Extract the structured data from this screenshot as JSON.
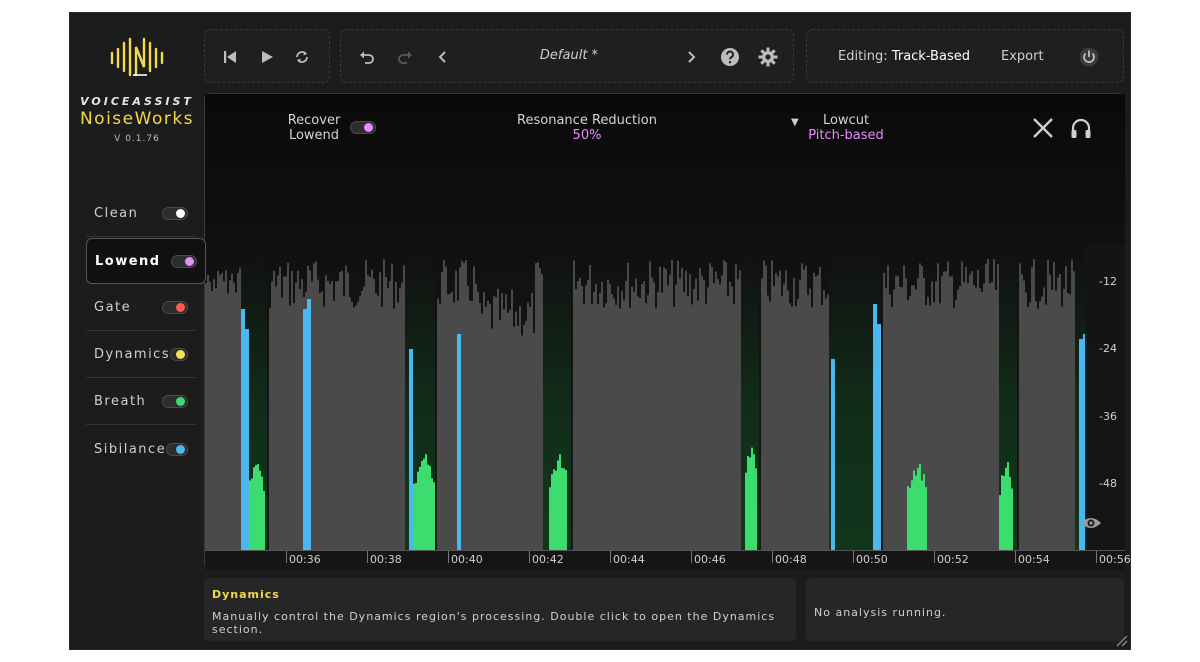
{
  "brand": {
    "top": "VOICEASSIST",
    "name": "NoiseWorks",
    "version": "V 0.1.76"
  },
  "sidebar": {
    "items": [
      {
        "label": "Clean",
        "color": "#ffffff",
        "active": false
      },
      {
        "label": "Lowend",
        "color": "#e68cff",
        "active": true
      },
      {
        "label": "Gate",
        "color": "#ff5a4e",
        "active": false
      },
      {
        "label": "Dynamics",
        "color": "#f2e25a",
        "active": false
      },
      {
        "label": "Breath",
        "color": "#3ddc6e",
        "active": false
      },
      {
        "label": "Sibilance",
        "color": "#4ab8ef",
        "active": false
      }
    ]
  },
  "toolbar": {
    "preset": "Default *",
    "editing_label": "Editing:",
    "editing_value": "Track-Based",
    "export_label": "Export",
    "icons": [
      "skip-back-icon",
      "play-icon",
      "loop-icon",
      "undo-icon",
      "redo-icon",
      "chevron-left-icon",
      "chevron-right-icon",
      "help-icon",
      "gear-icon",
      "power-icon"
    ]
  },
  "controls": {
    "recover_label_1": "Recover",
    "recover_label_2": "Lowend",
    "resonance_label": "Resonance Reduction",
    "resonance_value": "50%",
    "lowcut_label": "Lowcut",
    "lowcut_value": "Pitch-based"
  },
  "graph": {
    "db_labels": [
      "-12",
      "-24",
      "-36",
      "-48"
    ],
    "time_ticks": [
      "00:36",
      "00:38",
      "00:40",
      "00:42",
      "00:44",
      "00:46",
      "00:48",
      "00:50",
      "00:52",
      "00:54",
      "00:56"
    ]
  },
  "info": {
    "title": "Dynamics",
    "text": "Manually control the Dynamics region's processing. Double click to open the Dynamics section."
  },
  "status": {
    "text": "No analysis running."
  },
  "colors": {
    "accent_yellow": "#f2d94a",
    "accent_pink": "#e68cff",
    "waveform_gray": "#4a4a4a",
    "sibilance_blue": "#4ab8ef",
    "breath_green": "#3ddc6e"
  }
}
